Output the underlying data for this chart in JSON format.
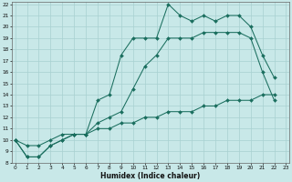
{
  "bg_color": "#c8e8e8",
  "grid_color": "#a8d0d0",
  "line_color": "#1a6e5e",
  "xlabel": "Humidex (Indice chaleur)",
  "x_values": [
    0,
    1,
    2,
    3,
    4,
    5,
    6,
    7,
    8,
    9,
    10,
    11,
    12,
    13,
    14,
    15,
    16,
    17,
    18,
    19,
    20,
    21,
    22,
    23
  ],
  "upper_y": [
    10,
    8.5,
    8.5,
    9.5,
    10,
    10.5,
    10.5,
    13.5,
    14.0,
    17.5,
    19.0,
    19.0,
    19.0,
    22.0,
    21.0,
    20.5,
    21.0,
    20.5,
    21.0,
    21.0,
    20.0,
    17.5,
    15.5,
    null
  ],
  "middle_y": [
    10,
    8.5,
    8.5,
    9.5,
    10,
    10.5,
    10.5,
    11.5,
    12.0,
    12.5,
    14.5,
    16.5,
    17.5,
    19.0,
    19.0,
    19.0,
    19.5,
    19.5,
    19.5,
    19.5,
    19.0,
    16.0,
    13.5,
    null
  ],
  "lower_y": [
    10,
    9.5,
    9.5,
    10,
    10.5,
    10.5,
    10.5,
    11.0,
    11.0,
    11.5,
    11.5,
    12.0,
    12.0,
    12.5,
    12.5,
    12.5,
    13.0,
    13.0,
    13.5,
    13.5,
    13.5,
    14.0,
    14.0,
    null
  ],
  "ylim_min": 8,
  "ylim_max": 22.2,
  "xlim_min": -0.3,
  "xlim_max": 23.3,
  "yticks": [
    8,
    9,
    10,
    11,
    12,
    13,
    14,
    15,
    16,
    17,
    18,
    19,
    20,
    21,
    22
  ],
  "xticks": [
    0,
    1,
    2,
    3,
    4,
    5,
    6,
    7,
    8,
    9,
    10,
    11,
    12,
    13,
    14,
    15,
    16,
    17,
    18,
    19,
    20,
    21,
    22,
    23
  ],
  "tick_fontsize": 4.2,
  "xlabel_fontsize": 5.5,
  "marker_size": 2.0,
  "line_width": 0.75
}
